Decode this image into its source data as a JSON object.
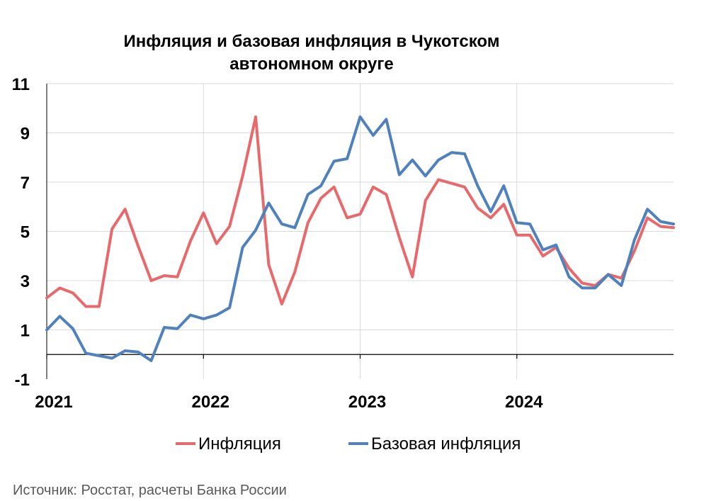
{
  "chart_data": {
    "type": "line",
    "title_lines": [
      "Инфляция и базовая инфляция в Чукотском",
      "автономном округе"
    ],
    "y_ticks": [
      "11",
      "9",
      "7",
      "5",
      "3",
      "1",
      "-1"
    ],
    "ylim": [
      -1,
      11
    ],
    "x_ticks": [
      "2021",
      "2022",
      "2023",
      "2024"
    ],
    "x_start": "2021-01",
    "grid": true,
    "legend_position": "bottom",
    "source": "Источник: Росстат, расчеты Банка России",
    "series": [
      {
        "name": "Инфляция",
        "color": "#E8696B",
        "values": [
          2.3,
          2.7,
          2.5,
          1.95,
          1.95,
          5.1,
          5.9,
          4.4,
          3.0,
          3.2,
          3.15,
          4.6,
          5.75,
          4.5,
          5.2,
          7.25,
          9.65,
          3.65,
          2.05,
          3.35,
          5.35,
          6.35,
          6.8,
          5.55,
          5.7,
          6.8,
          6.5,
          4.75,
          3.15,
          6.25,
          7.1,
          6.95,
          6.8,
          5.95,
          5.55,
          6.1,
          4.85,
          4.85,
          4.0,
          4.35,
          3.5,
          2.9,
          2.8,
          3.25,
          3.1,
          4.2,
          5.55,
          5.2,
          5.15
        ]
      },
      {
        "name": "Базовая инфляция",
        "color": "#4F81BD",
        "values": [
          1.0,
          1.55,
          1.05,
          0.05,
          -0.05,
          -0.15,
          0.15,
          0.1,
          -0.25,
          1.1,
          1.05,
          1.6,
          1.45,
          1.6,
          1.9,
          4.35,
          5.05,
          6.15,
          5.3,
          5.15,
          6.5,
          6.85,
          7.85,
          7.95,
          9.65,
          8.9,
          9.55,
          7.3,
          7.9,
          7.25,
          7.9,
          8.2,
          8.15,
          6.85,
          5.8,
          6.85,
          5.35,
          5.3,
          4.25,
          4.45,
          3.15,
          2.7,
          2.7,
          3.25,
          2.8,
          4.65,
          5.9,
          5.4,
          5.3
        ]
      }
    ]
  }
}
